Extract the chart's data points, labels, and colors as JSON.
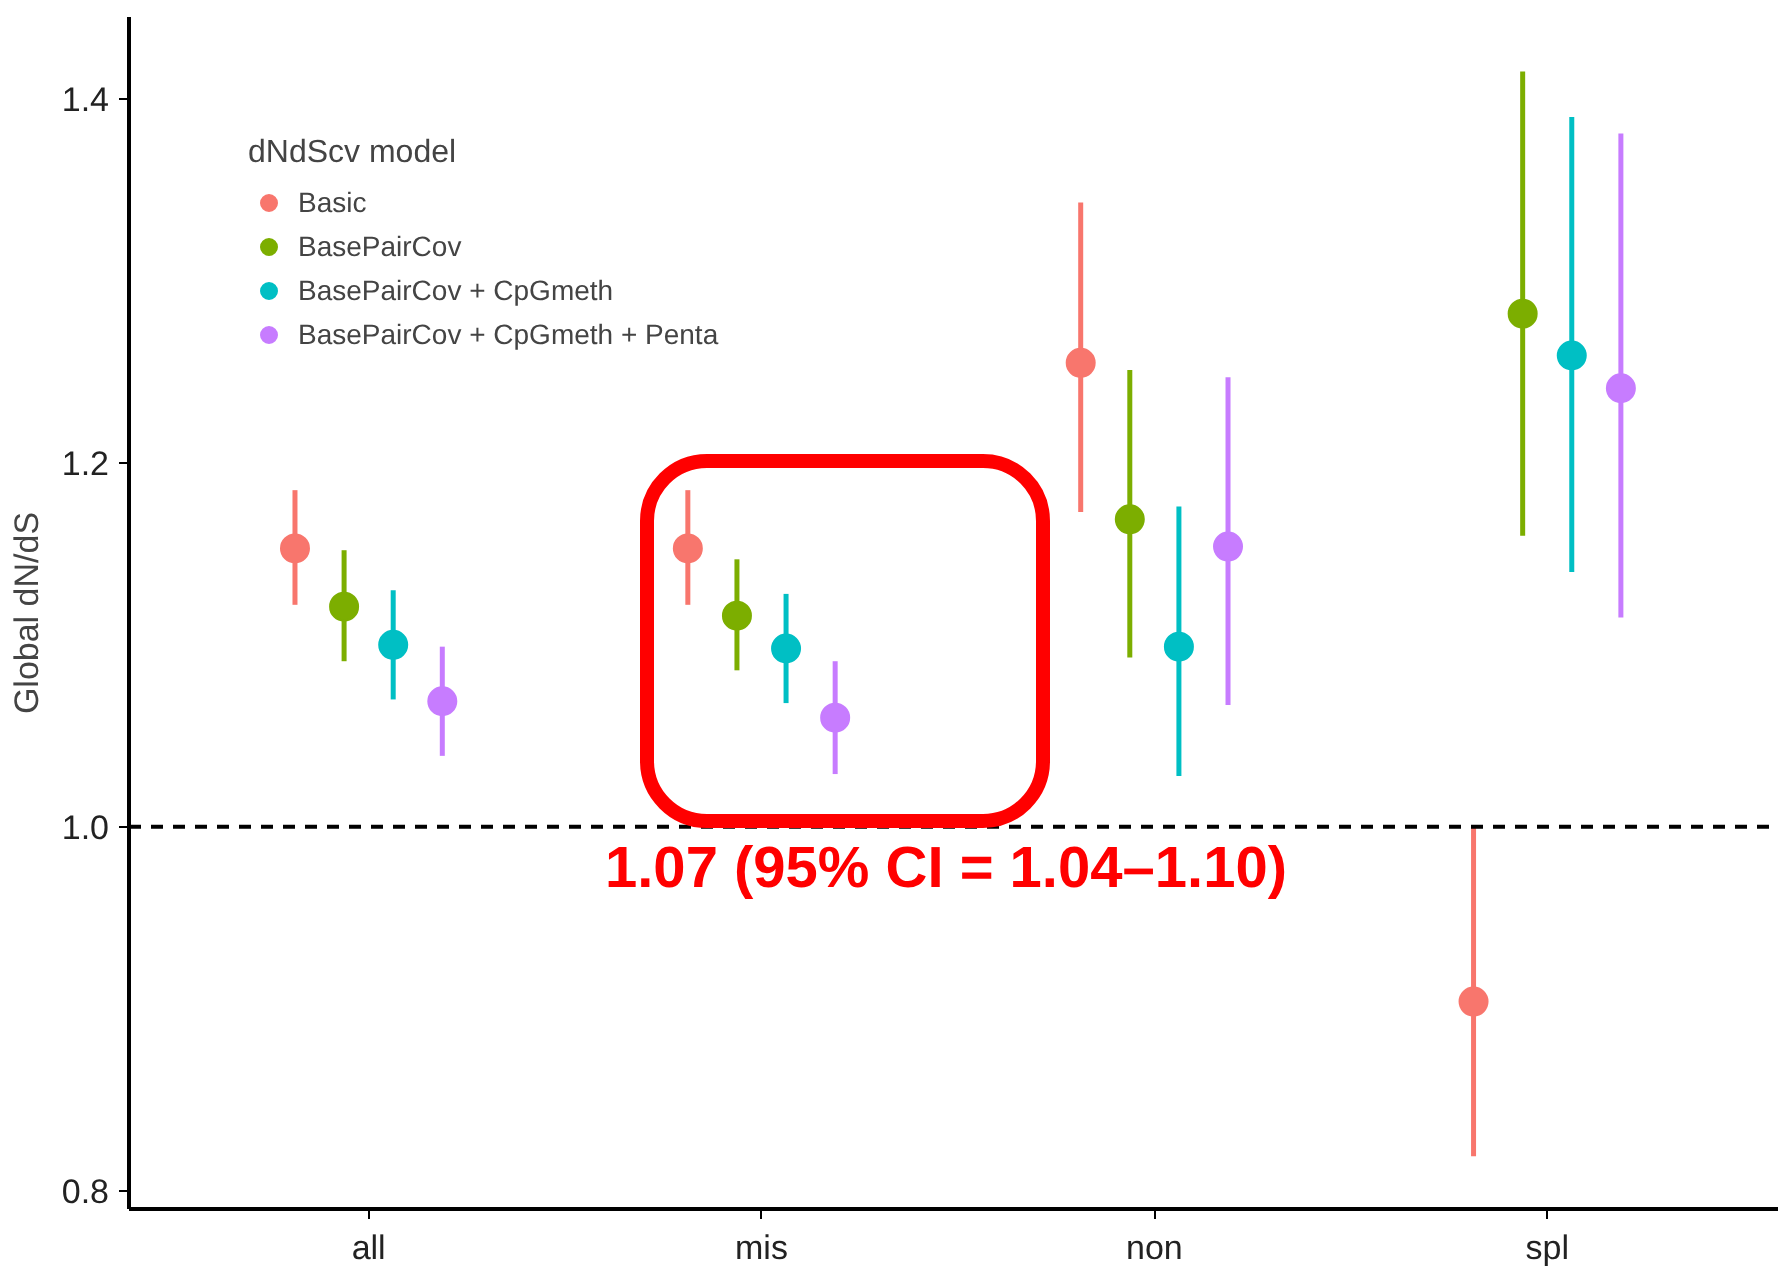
{
  "chart_data": {
    "type": "scatter",
    "ylabel": "Global dN/dS",
    "legend_title": "dNdScv model",
    "legend": "top left",
    "grid": false,
    "marker": "circle",
    "categories": [
      "all",
      "mis",
      "non",
      "spl"
    ],
    "ylim": [
      0.79,
      1.445
    ],
    "yticks": [
      0.8,
      {
        "value": 1.0,
        "label": "1.0"
      },
      1.2,
      1.4
    ],
    "series": [
      {
        "name": "Basic",
        "color": "#f8766d",
        "values": [
          1.153,
          1.153,
          1.255,
          0.904
        ],
        "errors": [
          [
            1.122,
            1.185
          ],
          [
            1.122,
            1.185
          ],
          [
            1.173,
            1.343
          ],
          [
            0.819,
            1.0
          ]
        ]
      },
      {
        "name": "BasePairCov",
        "color": "#7cae00",
        "values": [
          1.121,
          1.116,
          1.169,
          1.282
        ],
        "errors": [
          [
            1.091,
            1.152
          ],
          [
            1.086,
            1.147
          ],
          [
            1.093,
            1.251
          ],
          [
            1.16,
            1.415
          ]
        ]
      },
      {
        "name": "BasePairCov + CpGmeth",
        "color": "#00bfc4",
        "values": [
          1.1,
          1.098,
          1.099,
          1.259
        ],
        "errors": [
          [
            1.07,
            1.13
          ],
          [
            1.068,
            1.128
          ],
          [
            1.028,
            1.176
          ],
          [
            1.14,
            1.39
          ]
        ]
      },
      {
        "name": "BasePairCov + CpGmeth + Penta",
        "color": "#c77cff",
        "values": [
          1.069,
          1.06,
          1.154,
          1.241
        ],
        "errors": [
          [
            1.039,
            1.099
          ],
          [
            1.029,
            1.091
          ],
          [
            1.067,
            1.247
          ],
          [
            1.115,
            1.381
          ]
        ]
      }
    ],
    "ref_lines": [
      {
        "axis": "y",
        "value": 1.0,
        "color": "#000000",
        "line_style": "dashed"
      }
    ],
    "annotations": [
      "1.07 (95% CI = 1.04–1.10)"
    ]
  }
}
